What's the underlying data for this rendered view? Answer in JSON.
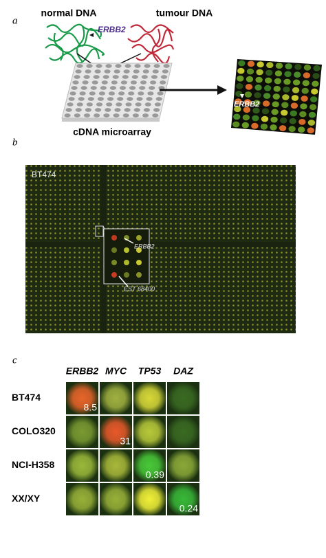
{
  "panel_a": {
    "label": "a",
    "normal_dna": "normal DNA",
    "tumour_dna": "tumour DNA",
    "gene": "ERBB2",
    "array": "cDNA microarray",
    "result_gene": "ERBB2"
  },
  "panel_b": {
    "label": "b",
    "cell_line": "BT474",
    "spot_1": "ERBB2",
    "spot_2": "EST 68400"
  },
  "panel_c": {
    "label": "c",
    "columns": [
      "ERBB2",
      "MYC",
      "TP53",
      "DAZ"
    ],
    "rows": [
      "BT474",
      "COLO320",
      "NCI-H358",
      "XX/XY"
    ],
    "ratios": [
      8.5,
      31,
      0.39,
      0.24
    ]
  }
}
